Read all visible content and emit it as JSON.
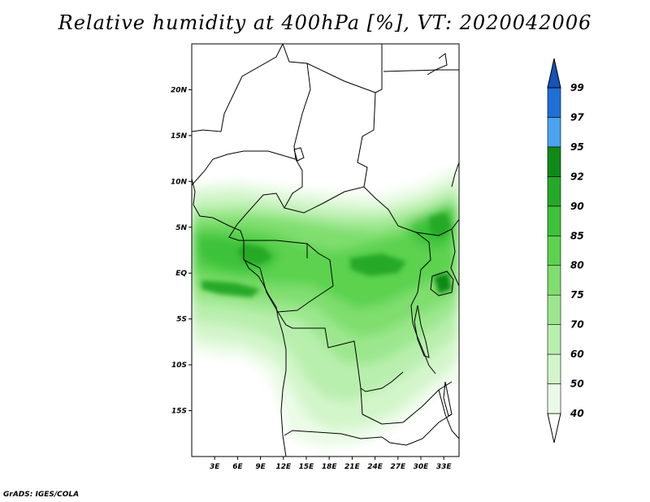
{
  "title": "Relative humidity at 400hPa [%], VT: 2020042006",
  "credit": "GrADS: IGES/COLA",
  "colors": {
    "c40": "#ffffff",
    "c50": "#ebfbe7",
    "c60": "#d3f5ca",
    "c70": "#b9efae",
    "c75": "#9ce78e",
    "c80": "#7fde6e",
    "c85": "#5cd24f",
    "c90": "#3dc23a",
    "c92": "#26a928",
    "c95": "#0f8a17",
    "c97": "#4aa3ef",
    "c99": "#1e6fd6",
    "over": "#1553b8",
    "line": "#000000"
  },
  "chart_data": {
    "type": "heatmap",
    "title": "Relative humidity at 400hPa [%], VT: 2020042006",
    "variable": "Relative humidity at 400hPa",
    "units": "%",
    "valid_time": "2020042006",
    "lon_range": [
      0,
      35
    ],
    "lat_range": [
      -20,
      25
    ],
    "lon_ticks": [
      "3E",
      "6E",
      "9E",
      "12E",
      "15E",
      "18E",
      "21E",
      "24E",
      "27E",
      "30E",
      "33E"
    ],
    "lat_ticks": [
      "20N",
      "15N",
      "10N",
      "5N",
      "EQ",
      "5S",
      "10S",
      "15S"
    ],
    "colorbar_levels": [
      "40",
      "50",
      "60",
      "70",
      "75",
      "80",
      "85",
      "90",
      "92",
      "95",
      "97",
      "99"
    ],
    "colorbar_colors": [
      "#ebfbe7",
      "#d3f5ca",
      "#b9efae",
      "#9ce78e",
      "#7fde6e",
      "#5cd24f",
      "#3dc23a",
      "#26a928",
      "#0f8a17",
      "#4aa3ef",
      "#1e6fd6"
    ],
    "colorbar_under": "#ffffff",
    "colorbar_over": "#1553b8",
    "colorbar_position": "right"
  }
}
